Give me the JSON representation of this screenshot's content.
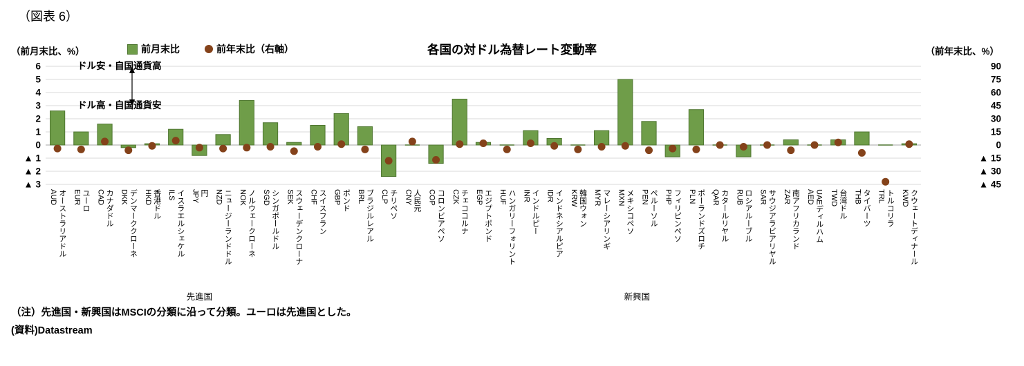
{
  "figure_label": "（図表 6）",
  "title": "各国の対ドル為替レート変動率",
  "left_axis_caption": "（前月末比、%）",
  "right_axis_caption": "（前年末比、%）",
  "legend": {
    "bar_label": "前月末比",
    "dot_label": "前年末比（右軸）"
  },
  "annotations": {
    "upper": "ドル安・自国通貨高",
    "lower": "ドル高・自国通貨安"
  },
  "notes": {
    "note": "（注）先進国・新興国はMSCIの分類に沿って分類。ユーロは先進国とした。",
    "source": "(資料)Datastream"
  },
  "colors": {
    "bar_fill": "#6f9d49",
    "bar_stroke": "#4f7631",
    "dot": "#84421a",
    "grid": "#d9d9d9",
    "zero_line": "#a6a6a6"
  },
  "chart_data": {
    "type": "bar",
    "title": "各国の対ドル為替レート変動率",
    "legend_position": "top",
    "grid": "horizontal",
    "left_axis": {
      "label": "（前月末比、%）",
      "min": -3,
      "max": 6,
      "tick_values": [
        6,
        5,
        4,
        3,
        2,
        1,
        0,
        -1,
        -2,
        -3
      ],
      "tick_labels": [
        "6",
        "5",
        "4",
        "3",
        "2",
        "1",
        "0",
        "▲ 1",
        "▲ 2",
        "▲ 3"
      ]
    },
    "right_axis": {
      "label": "（前年末比、%）",
      "min": -45,
      "max": 90,
      "tick_values": [
        90,
        75,
        60,
        45,
        30,
        15,
        0,
        -15,
        -30,
        -45
      ],
      "tick_labels": [
        "90",
        "75",
        "60",
        "45",
        "30",
        "15",
        "0",
        "▲ 15",
        "▲ 30",
        "▲ 45"
      ]
    },
    "categories": [
      {
        "code": "AUD",
        "name": "オーストラリアドル"
      },
      {
        "code": "EUR",
        "name": "ユーロ"
      },
      {
        "code": "CAD",
        "name": "カナダドル"
      },
      {
        "code": "DKK",
        "name": "デンマーククローネ"
      },
      {
        "code": "HKD",
        "name": "香港ドル"
      },
      {
        "code": "ILS",
        "name": "イスラエルシェケル"
      },
      {
        "code": "JPY",
        "name": "円"
      },
      {
        "code": "NZD",
        "name": "ニュージーランドドル"
      },
      {
        "code": "NOK",
        "name": "ノルウェークローネ"
      },
      {
        "code": "SGD",
        "name": "シンガポールドル"
      },
      {
        "code": "SEK",
        "name": "スウェーデンクローナ"
      },
      {
        "code": "CHF",
        "name": "スイスフラン"
      },
      {
        "code": "GBP",
        "name": "ポンド"
      },
      {
        "code": "BRL",
        "name": "ブラジルレアル"
      },
      {
        "code": "CLP",
        "name": "チリペソ"
      },
      {
        "code": "CNY",
        "name": "人民元"
      },
      {
        "code": "COP",
        "name": "コロンビアペソ"
      },
      {
        "code": "CZK",
        "name": "チェココルナ"
      },
      {
        "code": "EGP",
        "name": "エジプトポンド"
      },
      {
        "code": "HUF",
        "name": "ハンガリーフォリント"
      },
      {
        "code": "INR",
        "name": "インドルピー"
      },
      {
        "code": "IDR",
        "name": "インドネシアルピア"
      },
      {
        "code": "KRW",
        "name": "韓国ウォン"
      },
      {
        "code": "MYR",
        "name": "マレーシアリンギ"
      },
      {
        "code": "MXN",
        "name": "メキシコペソ"
      },
      {
        "code": "PEN",
        "name": "ペルーソル"
      },
      {
        "code": "PHP",
        "name": "フィリピンペソ"
      },
      {
        "code": "PLN",
        "name": "ポーランドズロチ"
      },
      {
        "code": "QAR",
        "name": "カタールリヤル"
      },
      {
        "code": "RUB",
        "name": "ロシアルーブル"
      },
      {
        "code": "SAR",
        "name": "サウジアラビアリヤル"
      },
      {
        "code": "ZAR",
        "name": "南アフリカランド"
      },
      {
        "code": "AED",
        "name": "UAEディルハム"
      },
      {
        "code": "TWD",
        "name": "台湾ドル"
      },
      {
        "code": "THB",
        "name": "タイバーツ"
      },
      {
        "code": "TRL",
        "name": "トルコリラ"
      },
      {
        "code": "KWD",
        "name": "クウェートディナール"
      }
    ],
    "series": [
      {
        "name": "前月末比",
        "type": "bar",
        "axis": "left",
        "values": [
          2.6,
          1.0,
          1.6,
          -0.2,
          0.1,
          1.2,
          -0.8,
          0.8,
          3.4,
          1.7,
          0.2,
          1.5,
          2.4,
          1.4,
          -2.4,
          0.0,
          -1.4,
          3.5,
          0.2,
          0.0,
          1.1,
          0.5,
          0.0,
          1.1,
          5.0,
          1.8,
          -0.9,
          2.7,
          0.0,
          -0.9,
          0.0,
          0.4,
          0.0,
          0.4,
          1.0,
          0.0,
          0.1
        ]
      },
      {
        "name": "前年末比（右軸）",
        "type": "dot",
        "axis": "right",
        "values": [
          -4,
          -5,
          4,
          -6,
          -1,
          5,
          -3,
          -4,
          -3,
          -2,
          -7,
          -2,
          1,
          -5,
          -18,
          4,
          -17,
          1,
          2,
          -5,
          2,
          -1,
          -5,
          -2,
          -1,
          -6,
          -4,
          -5,
          0,
          -2,
          0,
          -6,
          0,
          3,
          -9,
          -42,
          1
        ]
      }
    ],
    "groups": [
      {
        "label": "先進国",
        "start": 0,
        "end": 12
      },
      {
        "label": "新興国",
        "start": 13,
        "end": 36
      }
    ]
  }
}
